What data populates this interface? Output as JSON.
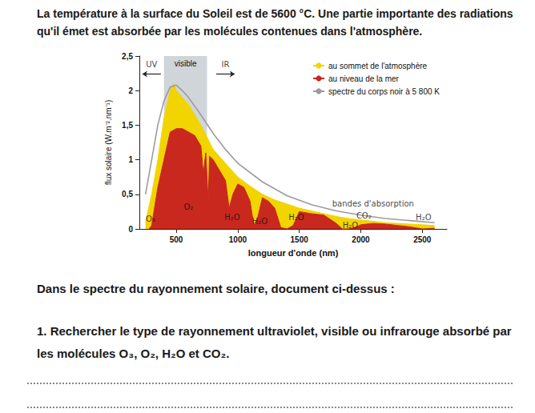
{
  "intro": "La température à la surface du Soleil est de 5600 °C. Une partie importante des radiations qu'il émet est absorbée par les molécules contenues dans l'atmosphère.",
  "chart_data": {
    "type": "area",
    "x_label": "longueur d'onde (nm)",
    "y_label": "flux solaire (W.m⁻².nm⁻¹)",
    "xlim": [
      200,
      2700
    ],
    "xticks": [
      500,
      1000,
      1500,
      2000,
      2500
    ],
    "ylim": [
      0,
      2.5
    ],
    "yticks": [
      0,
      {
        "value": 0.5,
        "label": "0,5"
      },
      1,
      {
        "value": 1.5,
        "label": "1,5"
      },
      2,
      {
        "value": 2.5,
        "label": "2,5"
      }
    ],
    "grid": false,
    "legend": "upper right",
    "series": [
      {
        "name": "au sommet de l'atmosphère",
        "color": "#f2d400",
        "type": "area",
        "x": [
          250,
          300,
          350,
          400,
          450,
          480,
          500,
          550,
          600,
          700,
          800,
          900,
          1000,
          1100,
          1200,
          1300,
          1400,
          1500,
          1600,
          1700,
          1800,
          1900,
          2000,
          2100,
          2200,
          2300,
          2400,
          2500,
          2600
        ],
        "values": [
          0.1,
          0.5,
          1.0,
          1.6,
          2.0,
          2.1,
          2.0,
          1.9,
          1.8,
          1.5,
          1.15,
          0.95,
          0.75,
          0.62,
          0.5,
          0.42,
          0.36,
          0.3,
          0.26,
          0.22,
          0.18,
          0.15,
          0.13,
          0.11,
          0.09,
          0.08,
          0.07,
          0.06,
          0.05
        ]
      },
      {
        "name": "au niveau de la mer",
        "color": "#c8281e",
        "type": "area",
        "x": [
          280,
          300,
          350,
          400,
          450,
          500,
          550,
          600,
          650,
          700,
          720,
          740,
          760,
          770,
          800,
          900,
          930,
          960,
          1000,
          1050,
          1100,
          1130,
          1160,
          1200,
          1250,
          1300,
          1350,
          1400,
          1450,
          1500,
          1600,
          1700,
          1800,
          1850,
          1900,
          1950,
          2000,
          2100,
          2200,
          2300,
          2400,
          2500,
          2600
        ],
        "values": [
          0,
          0.05,
          0.6,
          1.0,
          1.4,
          1.45,
          1.45,
          1.4,
          1.35,
          1.2,
          0.8,
          1.1,
          0.4,
          1.05,
          1.0,
          0.7,
          0.3,
          0.5,
          0.65,
          0.6,
          0.4,
          0.05,
          0.15,
          0.45,
          0.4,
          0.3,
          0.02,
          0,
          0.05,
          0.25,
          0.22,
          0.2,
          0.08,
          0,
          0,
          0.02,
          0.06,
          0.08,
          0.07,
          0.05,
          0.03,
          0,
          0.01
        ]
      },
      {
        "name": "spectre du corps noir à 5 800 K",
        "color": "#9c9c9c",
        "type": "line",
        "x": [
          250,
          300,
          350,
          400,
          450,
          500,
          550,
          600,
          700,
          800,
          900,
          1000,
          1200,
          1400,
          1600,
          1800,
          2000,
          2200,
          2400,
          2600
        ],
        "values": [
          0.5,
          1.0,
          1.5,
          1.85,
          2.05,
          2.08,
          2.0,
          1.9,
          1.65,
          1.38,
          1.15,
          0.95,
          0.68,
          0.48,
          0.35,
          0.26,
          0.2,
          0.15,
          0.12,
          0.09
        ]
      }
    ],
    "regions": [
      {
        "label": "visible",
        "x": [
          400,
          750
        ],
        "color": "#aab3bc"
      }
    ],
    "annotations": [
      {
        "text": "UV",
        "x": 300,
        "y": 2.38,
        "marker": "arrow-left"
      },
      {
        "text": "IR",
        "x": 900,
        "y": 2.38,
        "marker": "arrow-right"
      },
      {
        "text": "O₃",
        "x": 290,
        "y": 0.15
      },
      {
        "text": "O₂",
        "x": 600,
        "y": 0.32
      },
      {
        "text": "H₂O",
        "x": 955,
        "y": 0.17
      },
      {
        "text": "H₂O",
        "x": 1180,
        "y": 0.11
      },
      {
        "text": "H₂O",
        "x": 1475,
        "y": 0.17
      },
      {
        "text": "H₂O",
        "x": 1915,
        "y": 0.05
      },
      {
        "text": "CO₂",
        "x": 2025,
        "y": 0.19
      },
      {
        "text": "H₂O",
        "x": 2510,
        "y": 0.17
      },
      {
        "text": "bandes d'absorption",
        "x": 2100,
        "y": 0.36
      }
    ]
  },
  "instruction": "Dans le spectre du rayonnement solaire, document ci-dessus :",
  "questions": [
    {
      "number": "1.",
      "text": "Rechercher le type de rayonnement ultraviolet, visible ou infrarouge absorbé par les molécules O₃, O₂, H₂O et CO₂."
    }
  ]
}
